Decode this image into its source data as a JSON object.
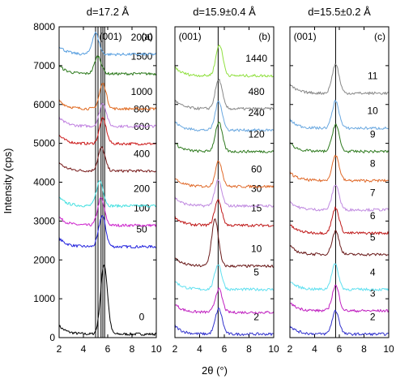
{
  "chart_data": {
    "type": "line",
    "ylabel": "Intensity (cps)",
    "xlabel": "2θ (°)",
    "xlim": [
      2,
      10
    ],
    "ylim": [
      0,
      8000
    ],
    "x_ticks": [
      "2",
      "4",
      "6",
      "8",
      "10"
    ],
    "y_ticks": [
      "0",
      "1000",
      "2000",
      "3000",
      "4000",
      "5000",
      "6000",
      "7000",
      "8000"
    ],
    "grid": false,
    "legend": "none (curves labelled inline at right)",
    "panels": [
      {
        "title": "d=17.2 Å",
        "peak_label": "(001)",
        "panel_label": "(a)",
        "reference_lines_2theta": [
          5.0,
          5.2,
          5.45,
          5.6,
          5.75
        ],
        "series": [
          {
            "label": "0",
            "offset": 0,
            "peak_2theta": 5.7,
            "peak_height": 1800,
            "color": "#000000"
          },
          {
            "label": "50",
            "offset": 2250,
            "peak_2theta": 5.55,
            "peak_height": 800,
            "color": "#2222dd"
          },
          {
            "label": "100",
            "offset": 2800,
            "peak_2theta": 5.45,
            "peak_height": 700,
            "color": "#cc22cc"
          },
          {
            "label": "200",
            "offset": 3300,
            "peak_2theta": 5.35,
            "peak_height": 650,
            "color": "#44e0e0"
          },
          {
            "label": "400",
            "offset": 4200,
            "peak_2theta": 5.5,
            "peak_height": 600,
            "color": "#771a1a"
          },
          {
            "label": "600",
            "offset": 4900,
            "peak_2theta": 5.6,
            "peak_height": 650,
            "color": "#cc1a1a"
          },
          {
            "label": "800",
            "offset": 5350,
            "peak_2theta": 5.6,
            "peak_height": 600,
            "color": "#c080e0"
          },
          {
            "label": "1000",
            "offset": 5800,
            "peak_2theta": 5.6,
            "peak_height": 650,
            "color": "#e06a20"
          },
          {
            "label": "1500",
            "offset": 6700,
            "peak_2theta": 5.2,
            "peak_height": 450,
            "color": "#2e7a1e"
          },
          {
            "label": "2000",
            "offset": 7200,
            "peak_2theta": 5.0,
            "peak_height": 550,
            "color": "#5aa0e0"
          }
        ]
      },
      {
        "title": "d=15.9±0.4 Å",
        "peak_label": "(001)",
        "panel_label": "(b)",
        "reference_lines_2theta": [
          5.5
        ],
        "series": [
          {
            "label": "2",
            "offset": 0,
            "peak_2theta": 5.55,
            "peak_height": 650,
            "color": "#3030cc"
          },
          {
            "label": "",
            "offset": 560,
            "peak_2theta": 5.55,
            "peak_height": 600,
            "color": "#c020c0"
          },
          {
            "label": "5",
            "offset": 1150,
            "peak_2theta": 5.5,
            "peak_height": 650,
            "color": "#60e0f0"
          },
          {
            "label": "10",
            "offset": 1750,
            "peak_2theta": 5.25,
            "peak_height": 1200,
            "color": "#6a1a1a"
          },
          {
            "label": "15",
            "offset": 2800,
            "peak_2theta": 5.5,
            "peak_height": 650,
            "color": "#c01a1a"
          },
          {
            "label": "30",
            "offset": 3300,
            "peak_2theta": 5.5,
            "peak_height": 650,
            "color": "#c08ae0"
          },
          {
            "label": "60",
            "offset": 3800,
            "peak_2theta": 5.55,
            "peak_height": 650,
            "color": "#e06a2a"
          },
          {
            "label": "120",
            "offset": 4700,
            "peak_2theta": 5.55,
            "peak_height": 750,
            "color": "#2e7a1e"
          },
          {
            "label": "240",
            "offset": 5250,
            "peak_2theta": 5.55,
            "peak_height": 750,
            "color": "#6aa8e0"
          },
          {
            "label": "480",
            "offset": 5800,
            "peak_2theta": 5.55,
            "peak_height": 750,
            "color": "#888888"
          },
          {
            "label": "1440",
            "offset": 6650,
            "peak_2theta": 5.6,
            "peak_height": 800,
            "color": "#90e040"
          }
        ]
      },
      {
        "title": "d=15.5±0.2 Å",
        "peak_label": "(001)",
        "panel_label": "(c)",
        "reference_lines_2theta": [
          5.7
        ],
        "series": [
          {
            "label": "2",
            "offset": 0,
            "peak_2theta": 5.7,
            "peak_height": 600,
            "color": "#3030cc"
          },
          {
            "label": "3",
            "offset": 600,
            "peak_2theta": 5.7,
            "peak_height": 650,
            "color": "#c020c0"
          },
          {
            "label": "4",
            "offset": 1150,
            "peak_2theta": 5.65,
            "peak_height": 650,
            "color": "#60e0f0"
          },
          {
            "label": "5",
            "offset": 2050,
            "peak_2theta": 5.7,
            "peak_height": 600,
            "color": "#6a1a1a"
          },
          {
            "label": "6",
            "offset": 2600,
            "peak_2theta": 5.7,
            "peak_height": 650,
            "color": "#c01a1a"
          },
          {
            "label": "7",
            "offset": 3200,
            "peak_2theta": 5.7,
            "peak_height": 650,
            "color": "#c08ae0"
          },
          {
            "label": "8",
            "offset": 3950,
            "peak_2theta": 5.7,
            "peak_height": 650,
            "color": "#e06a2a"
          },
          {
            "label": "9",
            "offset": 4700,
            "peak_2theta": 5.7,
            "peak_height": 700,
            "color": "#2e7a1e"
          },
          {
            "label": "10",
            "offset": 5300,
            "peak_2theta": 5.7,
            "peak_height": 700,
            "color": "#6aa8e0"
          },
          {
            "label": "11",
            "offset": 6200,
            "peak_2theta": 5.7,
            "peak_height": 750,
            "color": "#888888"
          }
        ]
      }
    ]
  }
}
